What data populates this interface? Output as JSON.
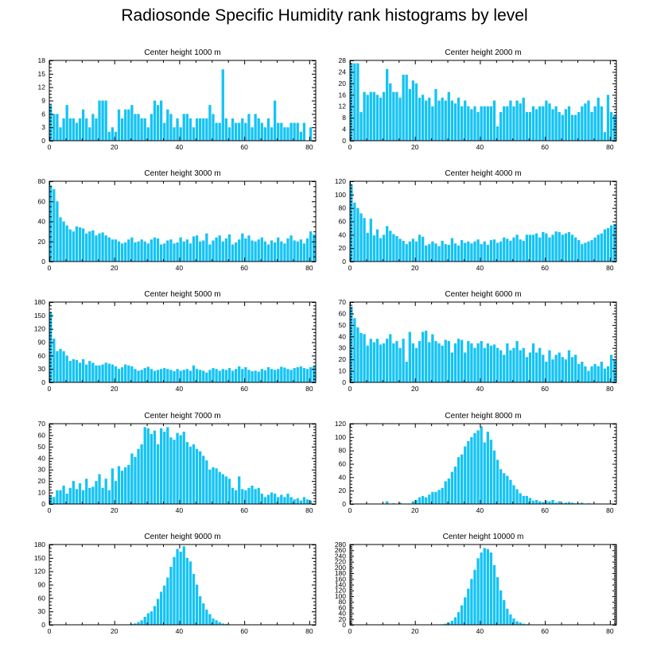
{
  "title": "Radiosonde Specific Humidity rank histograms by level",
  "colors": {
    "bar": "#14c3f5",
    "axis": "#000000",
    "background": "#ffffff"
  },
  "chart_data": [
    {
      "type": "bar",
      "title": "Center height 1000 m",
      "xlim": [
        0,
        82
      ],
      "ylim": [
        0,
        18
      ],
      "xticks": [
        "0",
        "20",
        "40",
        "60",
        "80"
      ],
      "yticks": [
        "0",
        "3",
        "6",
        "9",
        "12",
        "15",
        "18"
      ],
      "values": [
        8,
        6,
        6,
        3,
        5,
        8,
        5,
        5,
        4,
        5,
        7,
        5,
        3,
        6,
        5,
        9,
        9,
        9,
        2,
        3,
        2,
        7,
        5,
        7,
        7,
        8,
        6,
        6,
        5,
        5,
        3,
        6,
        9,
        8,
        9,
        4,
        7,
        6,
        3,
        5,
        3,
        6,
        6,
        5,
        3,
        5,
        5,
        5,
        5,
        8,
        6,
        4,
        4,
        16,
        5,
        3,
        5,
        4,
        4,
        5,
        4,
        6,
        3,
        6,
        5,
        4,
        3,
        5,
        3,
        9,
        4,
        4,
        3,
        3,
        4,
        4,
        4,
        2,
        4,
        0,
        3
      ]
    },
    {
      "type": "bar",
      "title": "Center height 2000 m",
      "xlim": [
        0,
        82
      ],
      "ylim": [
        0,
        28
      ],
      "xticks": [
        "0",
        "20",
        "40",
        "60",
        "80"
      ],
      "yticks": [
        "0",
        "4",
        "8",
        "12",
        "16",
        "20",
        "24",
        "28"
      ],
      "values": [
        27,
        27,
        27,
        10,
        17,
        16,
        17,
        17,
        16,
        15,
        17,
        25,
        20,
        17,
        17,
        15,
        23,
        23,
        18,
        21,
        20,
        15,
        16,
        14,
        15,
        12,
        18,
        14,
        15,
        14,
        17,
        14,
        13,
        15,
        12,
        14,
        12,
        11,
        12,
        10,
        12,
        12,
        12,
        12,
        14,
        5,
        10,
        12,
        12,
        14,
        12,
        14,
        13,
        15,
        10,
        10,
        12,
        11,
        12,
        12,
        14,
        13,
        11,
        12,
        10,
        9,
        11,
        12,
        9,
        9,
        10,
        12,
        13,
        14,
        10,
        12,
        15,
        12,
        3,
        16,
        10,
        9
      ]
    },
    {
      "type": "bar",
      "title": "Center height 3000 m",
      "xlim": [
        0,
        82
      ],
      "ylim": [
        0,
        80
      ],
      "xticks": [
        "0",
        "20",
        "40",
        "60",
        "80"
      ],
      "yticks": [
        "0",
        "20",
        "40",
        "60",
        "80"
      ],
      "values": [
        76,
        72,
        60,
        44,
        40,
        36,
        32,
        30,
        35,
        34,
        33,
        28,
        30,
        31,
        26,
        28,
        29,
        26,
        24,
        22,
        22,
        20,
        18,
        19,
        22,
        24,
        19,
        20,
        22,
        20,
        18,
        22,
        24,
        23,
        17,
        18,
        21,
        22,
        18,
        19,
        24,
        20,
        22,
        18,
        25,
        26,
        20,
        21,
        28,
        17,
        21,
        24,
        26,
        20,
        23,
        27,
        17,
        19,
        22,
        28,
        23,
        26,
        21,
        20,
        22,
        24,
        20,
        17,
        21,
        19,
        24,
        20,
        18,
        23,
        26,
        21,
        20,
        22,
        18,
        23,
        30,
        27
      ]
    },
    {
      "type": "bar",
      "title": "Center height 4000 m",
      "xlim": [
        0,
        82
      ],
      "ylim": [
        0,
        120
      ],
      "xticks": [
        "0",
        "20",
        "40",
        "60",
        "80"
      ],
      "yticks": [
        "0",
        "20",
        "40",
        "60",
        "80",
        "100",
        "120"
      ],
      "values": [
        115,
        88,
        80,
        72,
        65,
        43,
        64,
        39,
        48,
        35,
        40,
        53,
        46,
        41,
        38,
        34,
        31,
        26,
        30,
        34,
        30,
        40,
        37,
        24,
        26,
        30,
        27,
        23,
        31,
        26,
        25,
        35,
        27,
        24,
        32,
        28,
        30,
        27,
        30,
        33,
        26,
        30,
        25,
        32,
        33,
        28,
        30,
        36,
        34,
        31,
        36,
        40,
        33,
        31,
        40,
        40,
        40,
        42,
        36,
        44,
        42,
        36,
        40,
        45,
        44,
        40,
        42,
        44,
        40,
        36,
        32,
        26,
        28,
        30,
        32,
        36,
        40,
        42,
        48,
        50,
        54,
        56
      ]
    },
    {
      "type": "bar",
      "title": "Center height 5000 m",
      "xlim": [
        0,
        82
      ],
      "ylim": [
        0,
        180
      ],
      "xticks": [
        "0",
        "20",
        "40",
        "60",
        "80"
      ],
      "yticks": [
        "0",
        "30",
        "60",
        "90",
        "120",
        "150",
        "180"
      ],
      "values": [
        158,
        98,
        70,
        75,
        70,
        60,
        48,
        52,
        50,
        44,
        52,
        40,
        48,
        44,
        38,
        38,
        40,
        44,
        42,
        40,
        36,
        30,
        34,
        40,
        38,
        36,
        30,
        26,
        28,
        32,
        35,
        30,
        26,
        28,
        30,
        32,
        30,
        28,
        25,
        30,
        26,
        28,
        30,
        26,
        38,
        30,
        28,
        26,
        22,
        28,
        32,
        30,
        26,
        30,
        28,
        32,
        26,
        30,
        36,
        30,
        34,
        28,
        25,
        26,
        24,
        30,
        27,
        34,
        30,
        28,
        30,
        35,
        33,
        30,
        28,
        32,
        34,
        36,
        32,
        30,
        34,
        36
      ]
    },
    {
      "type": "bar",
      "title": "Center height 6000 m",
      "xlim": [
        0,
        82
      ],
      "ylim": [
        0,
        70
      ],
      "xticks": [
        "0",
        "20",
        "40",
        "60",
        "80"
      ],
      "yticks": [
        "0",
        "10",
        "20",
        "30",
        "40",
        "50",
        "60",
        "70"
      ],
      "values": [
        66,
        56,
        48,
        43,
        42,
        32,
        38,
        35,
        38,
        33,
        34,
        38,
        42,
        34,
        36,
        30,
        38,
        18,
        44,
        34,
        30,
        36,
        44,
        45,
        35,
        42,
        36,
        34,
        32,
        37,
        36,
        26,
        34,
        38,
        37,
        26,
        36,
        34,
        30,
        34,
        36,
        30,
        34,
        32,
        33,
        30,
        28,
        24,
        34,
        28,
        30,
        36,
        28,
        30,
        22,
        26,
        34,
        26,
        30,
        24,
        18,
        28,
        20,
        24,
        26,
        22,
        20,
        28,
        22,
        24,
        16,
        18,
        14,
        10,
        14,
        16,
        14,
        18,
        12,
        14,
        24,
        20
      ]
    },
    {
      "type": "bar",
      "title": "Center height 7000 m",
      "xlim": [
        0,
        82
      ],
      "ylim": [
        0,
        70
      ],
      "xticks": [
        "0",
        "20",
        "40",
        "60",
        "80"
      ],
      "yticks": [
        "0",
        "10",
        "20",
        "30",
        "40",
        "50",
        "60",
        "70"
      ],
      "values": [
        7,
        6,
        12,
        12,
        16,
        9,
        14,
        20,
        13,
        18,
        12,
        22,
        14,
        15,
        20,
        26,
        14,
        22,
        12,
        31,
        20,
        33,
        29,
        32,
        34,
        44,
        41,
        48,
        52,
        67,
        66,
        61,
        64,
        52,
        66,
        63,
        67,
        58,
        56,
        62,
        60,
        63,
        54,
        50,
        52,
        48,
        46,
        42,
        38,
        30,
        32,
        31,
        28,
        26,
        24,
        22,
        14,
        12,
        24,
        13,
        12,
        14,
        16,
        13,
        14,
        9,
        6,
        8,
        10,
        9,
        6,
        8,
        6,
        9,
        6,
        4,
        5,
        3,
        6,
        4,
        3
      ]
    },
    {
      "type": "bar",
      "title": "Center height 8000 m",
      "xlim": [
        0,
        82
      ],
      "ylim": [
        0,
        120
      ],
      "xticks": [
        "0",
        "20",
        "40",
        "60",
        "80"
      ],
      "yticks": [
        "0",
        "20",
        "40",
        "60",
        "80",
        "100",
        "120"
      ],
      "values": [
        0,
        0,
        0,
        0,
        0,
        0,
        0,
        0,
        0,
        0,
        0,
        4,
        0,
        1,
        0,
        2,
        0,
        0,
        0,
        4,
        6,
        10,
        12,
        10,
        14,
        18,
        18,
        21,
        24,
        34,
        38,
        48,
        56,
        70,
        74,
        86,
        94,
        100,
        106,
        110,
        116,
        92,
        108,
        96,
        80,
        66,
        52,
        46,
        42,
        36,
        28,
        22,
        16,
        12,
        12,
        9,
        5,
        6,
        4,
        3,
        5,
        4,
        6,
        2,
        4,
        1,
        2,
        3,
        2,
        1,
        1,
        2,
        0,
        1,
        0,
        0,
        0,
        0,
        0,
        0,
        0
      ]
    },
    {
      "type": "bar",
      "title": "Center height 9000 m",
      "xlim": [
        0,
        82
      ],
      "ylim": [
        0,
        180
      ],
      "xticks": [
        "0",
        "20",
        "40",
        "60",
        "80"
      ],
      "yticks": [
        "0",
        "30",
        "60",
        "90",
        "120",
        "150",
        "180"
      ],
      "values": [
        0,
        0,
        0,
        0,
        0,
        0,
        0,
        0,
        0,
        0,
        0,
        0,
        0,
        0,
        0,
        0,
        0,
        0,
        0,
        0,
        0,
        0,
        0,
        0,
        1,
        2,
        3,
        6,
        10,
        18,
        26,
        30,
        42,
        58,
        74,
        88,
        106,
        130,
        152,
        170,
        164,
        176,
        150,
        142,
        114,
        90,
        64,
        48,
        34,
        24,
        14,
        10,
        6,
        3,
        2,
        1,
        0,
        0,
        0,
        0,
        0,
        0,
        0,
        0,
        0,
        0,
        0,
        0,
        0,
        0,
        0,
        0,
        0,
        0,
        0,
        0,
        0,
        0,
        0,
        0,
        0
      ]
    },
    {
      "type": "bar",
      "title": "Center height 10000 m",
      "xlim": [
        0,
        82
      ],
      "ylim": [
        0,
        280
      ],
      "xticks": [
        "0",
        "20",
        "40",
        "60",
        "80"
      ],
      "yticks": [
        "0",
        "20",
        "40",
        "60",
        "80",
        "100",
        "120",
        "140",
        "160",
        "180",
        "200",
        "220",
        "240",
        "260",
        "280"
      ],
      "values": [
        0,
        0,
        0,
        0,
        0,
        0,
        0,
        0,
        0,
        0,
        0,
        0,
        0,
        0,
        0,
        0,
        0,
        0,
        0,
        0,
        0,
        0,
        0,
        0,
        0,
        0,
        0,
        0,
        2,
        4,
        8,
        14,
        26,
        44,
        68,
        96,
        126,
        160,
        192,
        232,
        252,
        268,
        264,
        252,
        208,
        166,
        120,
        86,
        56,
        36,
        22,
        12,
        8,
        4,
        2,
        1,
        0,
        0,
        0,
        0,
        0,
        0,
        0,
        0,
        0,
        0,
        0,
        0,
        0,
        0,
        0,
        0,
        0,
        0,
        0,
        0,
        0,
        0,
        0,
        0,
        0
      ]
    }
  ]
}
